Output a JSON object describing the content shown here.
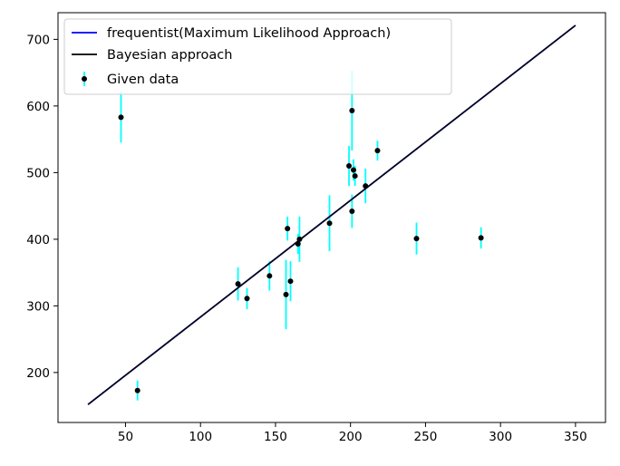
{
  "chart_data": {
    "type": "scatter",
    "title": "",
    "xlabel": "",
    "ylabel": "",
    "xlim": [
      5,
      370
    ],
    "ylim": [
      125,
      740
    ],
    "xticks": [
      50,
      100,
      150,
      200,
      250,
      300,
      350
    ],
    "yticks": [
      200,
      300,
      400,
      500,
      600,
      700
    ],
    "grid": false,
    "legend_position": "top-left",
    "series": [
      {
        "name": "frequentist(Maximum Likelihood Approach)",
        "kind": "line",
        "color": "#0000ff",
        "x": [
          25,
          350
        ],
        "y": [
          152,
          721
        ]
      },
      {
        "name": "Bayesian approach",
        "kind": "line",
        "color": "#000000",
        "x": [
          25,
          350
        ],
        "y": [
          152,
          721
        ]
      },
      {
        "name": "Given data",
        "kind": "errorbar",
        "marker_color": "#000000",
        "errorbar_color": "#00ffff",
        "points": [
          {
            "x": 47,
            "y": 583,
            "yerr": 38
          },
          {
            "x": 58,
            "y": 173,
            "yerr": 15
          },
          {
            "x": 125,
            "y": 333,
            "yerr": 25
          },
          {
            "x": 131,
            "y": 311,
            "yerr": 16
          },
          {
            "x": 146,
            "y": 345,
            "yerr": 22
          },
          {
            "x": 157,
            "y": 317,
            "yerr": 52
          },
          {
            "x": 158,
            "y": 416,
            "yerr": 18
          },
          {
            "x": 160,
            "y": 337,
            "yerr": 30
          },
          {
            "x": 165,
            "y": 393,
            "yerr": 15
          },
          {
            "x": 166,
            "y": 400,
            "yerr": 34
          },
          {
            "x": 186,
            "y": 424,
            "yerr": 42
          },
          {
            "x": 199,
            "y": 510,
            "yerr": 30
          },
          {
            "x": 201,
            "y": 593,
            "yerr": 60
          },
          {
            "x": 201,
            "y": 442,
            "yerr": 25
          },
          {
            "x": 202,
            "y": 504,
            "yerr": 16
          },
          {
            "x": 203,
            "y": 495,
            "yerr": 15
          },
          {
            "x": 210,
            "y": 480,
            "yerr": 26
          },
          {
            "x": 218,
            "y": 533,
            "yerr": 15
          },
          {
            "x": 244,
            "y": 401,
            "yerr": 24
          },
          {
            "x": 287,
            "y": 402,
            "yerr": 16
          }
        ]
      }
    ]
  }
}
